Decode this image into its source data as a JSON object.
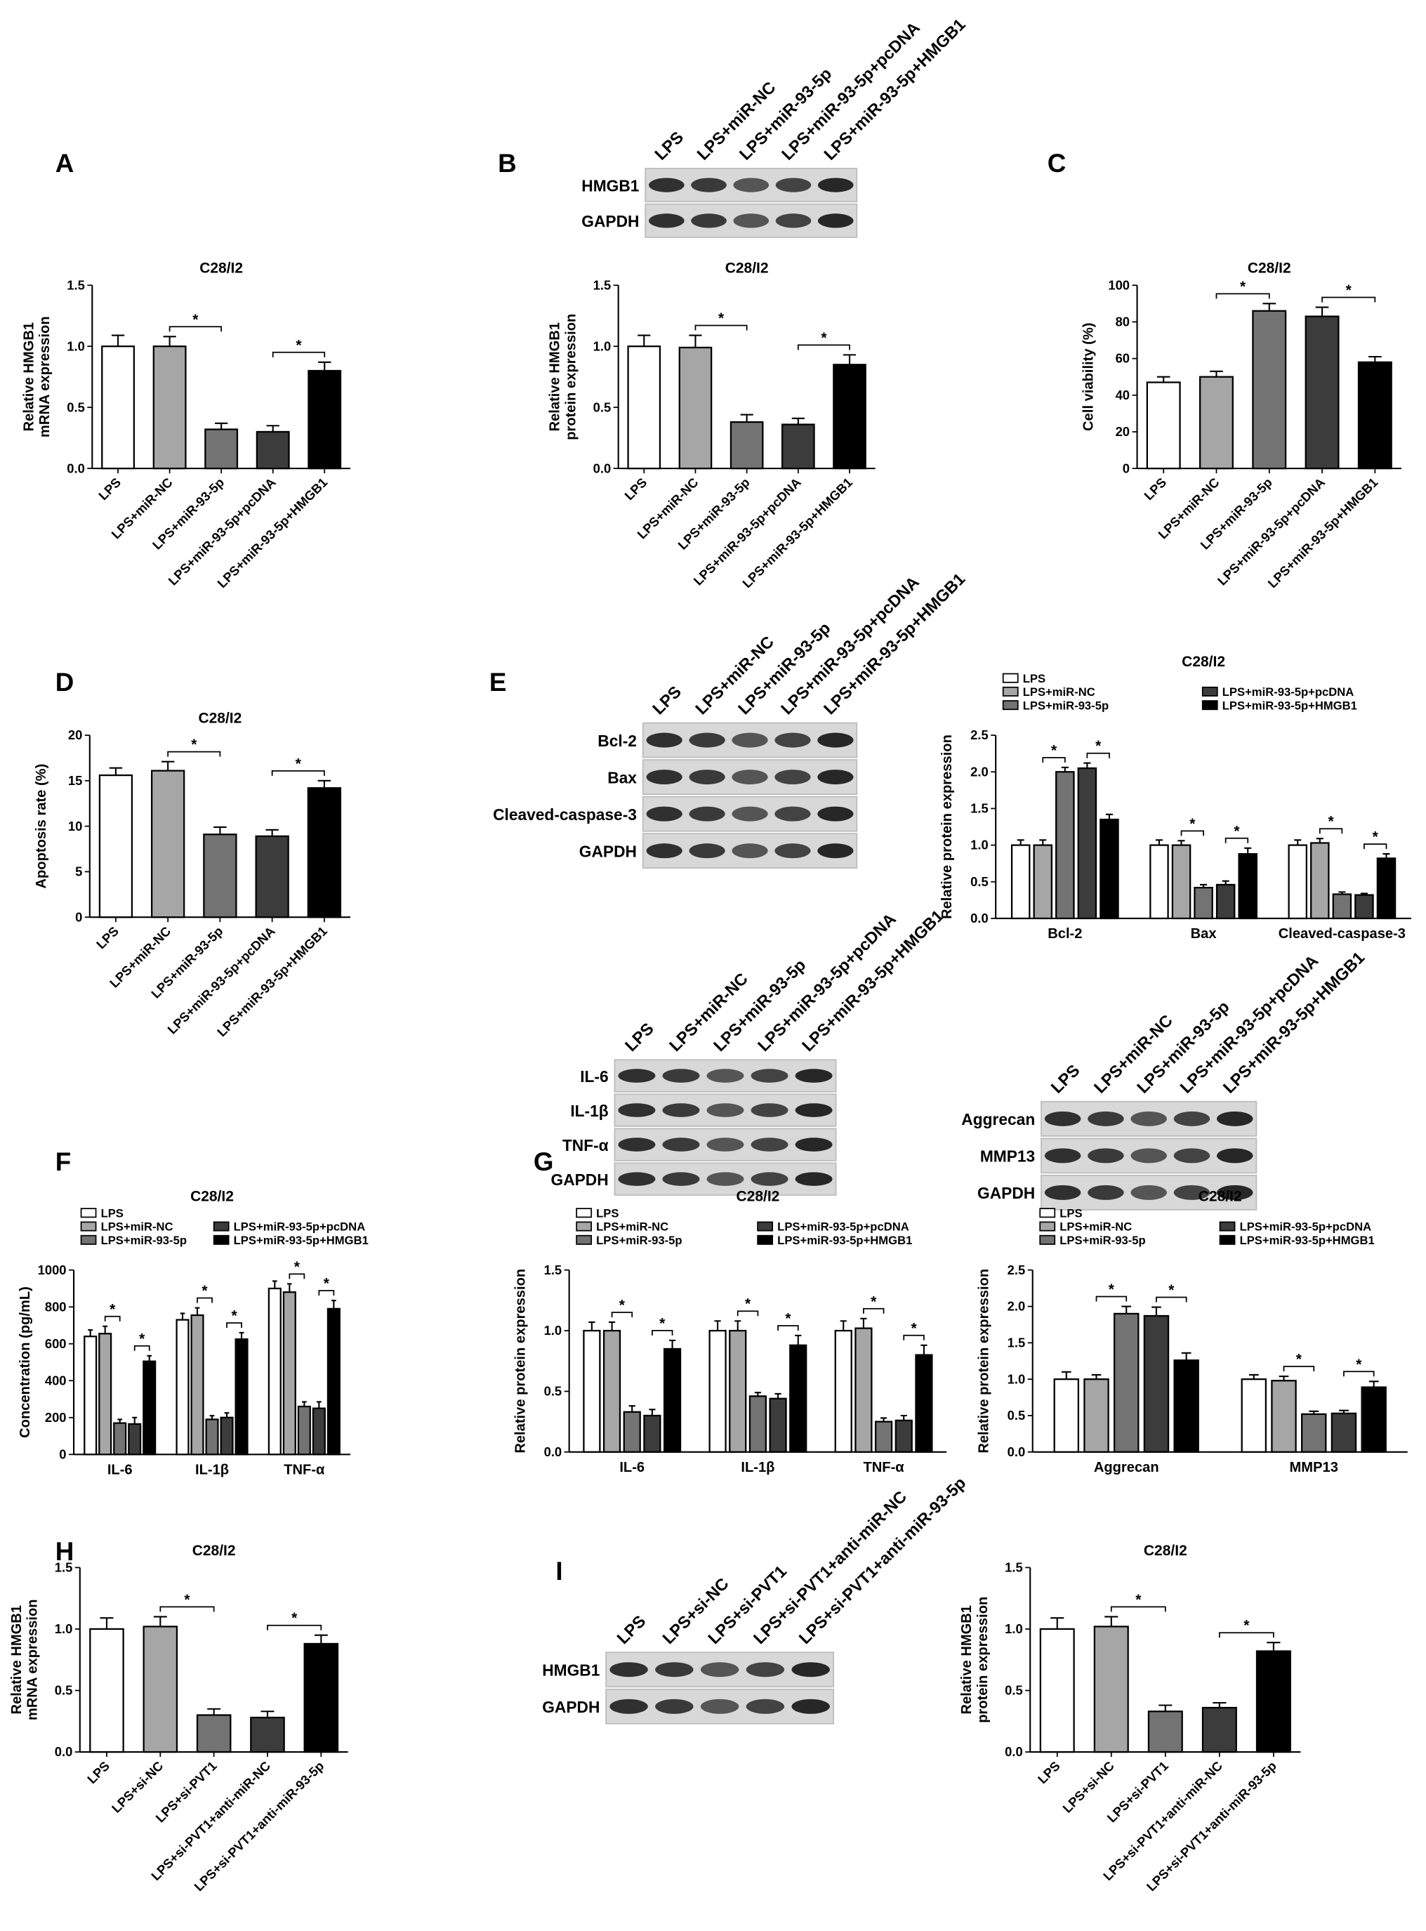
{
  "panels": [
    "A",
    "B",
    "C",
    "D",
    "E",
    "F",
    "G",
    "H",
    "I"
  ],
  "blots": [
    {
      "lanes": [
        "LPS",
        "LPS+miR-NC",
        "LPS+miR-93-5p",
        "LPS+miR-93-5p+pcDNA",
        "LPS+miR-93-5p+HMGB1"
      ],
      "rows": [
        "HMGB1",
        "GAPDH"
      ]
    },
    {
      "lanes": [
        "LPS",
        "LPS+miR-NC",
        "LPS+miR-93-5p",
        "LPS+miR-93-5p+pcDNA",
        "LPS+miR-93-5p+HMGB1"
      ],
      "rows": [
        "Bcl-2",
        "Bax",
        "Cleaved-caspase-3",
        "GAPDH"
      ]
    },
    {
      "lanes": [
        "LPS",
        "LPS+miR-NC",
        "LPS+miR-93-5p",
        "LPS+miR-93-5p+pcDNA",
        "LPS+miR-93-5p+HMGB1"
      ],
      "rows": [
        "IL-6",
        "IL-1β",
        "TNF-α",
        "GAPDH"
      ]
    },
    {
      "lanes": [
        "LPS",
        "LPS+miR-NC",
        "LPS+miR-93-5p",
        "LPS+miR-93-5p+pcDNA",
        "LPS+miR-93-5p+HMGB1"
      ],
      "rows": [
        "Aggrecan",
        "MMP13",
        "GAPDH"
      ]
    },
    {
      "lanes": [
        "LPS",
        "LPS+si-NC",
        "LPS+si-PVT1",
        "LPS+si-PVT1+anti-miR-NC",
        "LPS+si-PVT1+anti-miR-93-5p"
      ],
      "rows": [
        "HMGB1",
        "GAPDH"
      ]
    }
  ],
  "chart_data": [
    {
      "type": "bar",
      "title": "C28/I2",
      "ylabel": [
        "Relative HMGB1",
        "mRNA expression"
      ],
      "categories": [
        "LPS",
        "LPS+miR-NC",
        "LPS+miR-93-5p",
        "LPS+miR-93-5p+pcDNA",
        "LPS+miR-93-5p+HMGB1"
      ],
      "values": [
        1.0,
        1.0,
        0.32,
        0.3,
        0.8
      ],
      "errors": [
        0.09,
        0.08,
        0.05,
        0.05,
        0.07
      ],
      "colors": [
        "#ffffff",
        "#a6a6a6",
        "#737373",
        "#3c3c3c",
        "#000000"
      ],
      "ylim": [
        0,
        1.5
      ],
      "yticks": [
        {
          "value": 0,
          "label": "0.0"
        },
        0.5,
        {
          "value": 1,
          "label": "1.0"
        },
        1.5
      ],
      "comparisons": [
        {
          "pair": [
            1,
            2
          ],
          "text": "*"
        },
        {
          "pair": [
            3,
            4
          ],
          "text": "*"
        }
      ]
    },
    {
      "type": "bar",
      "title": "C28/I2",
      "ylabel": [
        "Relative HMGB1",
        "protein expression"
      ],
      "categories": [
        "LPS",
        "LPS+miR-NC",
        "LPS+miR-93-5p",
        "LPS+miR-93-5p+pcDNA",
        "LPS+miR-93-5p+HMGB1"
      ],
      "values": [
        1.0,
        0.99,
        0.38,
        0.36,
        0.85
      ],
      "errors": [
        0.09,
        0.1,
        0.06,
        0.05,
        0.08
      ],
      "colors": [
        "#ffffff",
        "#a6a6a6",
        "#737373",
        "#3c3c3c",
        "#000000"
      ],
      "ylim": [
        0,
        1.5
      ],
      "yticks": [
        {
          "value": 0,
          "label": "0.0"
        },
        0.5,
        {
          "value": 1,
          "label": "1.0"
        },
        1.5
      ],
      "comparisons": [
        {
          "pair": [
            1,
            2
          ],
          "text": "*"
        },
        {
          "pair": [
            3,
            4
          ],
          "text": "*"
        }
      ]
    },
    {
      "type": "bar",
      "title": "C28/I2",
      "ylabel": [
        "Cell viability (%)"
      ],
      "categories": [
        "LPS",
        "LPS+miR-NC",
        "LPS+miR-93-5p",
        "LPS+miR-93-5p+pcDNA",
        "LPS+miR-93-5p+HMGB1"
      ],
      "values": [
        47,
        50,
        86,
        83,
        58
      ],
      "errors": [
        3,
        3,
        4,
        5,
        3
      ],
      "colors": [
        "#ffffff",
        "#a6a6a6",
        "#737373",
        "#3c3c3c",
        "#000000"
      ],
      "ylim": [
        0,
        100
      ],
      "yticks": [
        0,
        20,
        40,
        60,
        80,
        100
      ],
      "comparisons": [
        {
          "pair": [
            1,
            2
          ],
          "text": "*"
        },
        {
          "pair": [
            3,
            4
          ],
          "text": "*"
        }
      ]
    },
    {
      "type": "bar",
      "title": "C28/I2",
      "ylabel": [
        "Apoptosis rate (%)"
      ],
      "categories": [
        "LPS",
        "LPS+miR-NC",
        "LPS+miR-93-5p",
        "LPS+miR-93-5p+pcDNA",
        "LPS+miR-93-5p+HMGB1"
      ],
      "values": [
        15.6,
        16.1,
        9.1,
        8.9,
        14.2
      ],
      "errors": [
        0.8,
        1.0,
        0.8,
        0.7,
        0.8
      ],
      "colors": [
        "#ffffff",
        "#a6a6a6",
        "#737373",
        "#3c3c3c",
        "#000000"
      ],
      "ylim": [
        0,
        20
      ],
      "yticks": [
        0,
        5,
        10,
        15,
        20
      ],
      "comparisons": [
        {
          "pair": [
            1,
            2
          ],
          "text": "*"
        },
        {
          "pair": [
            3,
            4
          ],
          "text": "*"
        }
      ]
    },
    {
      "type": "grouped_bar",
      "title": "C28/I2",
      "ylabel": [
        "Relative protein expression"
      ],
      "categories": [
        "Bcl-2",
        "Bax",
        "Cleaved-caspase-3"
      ],
      "legend": "top",
      "ylim": [
        0,
        2.5
      ],
      "yticks": [
        {
          "value": 0,
          "label": "0.0"
        },
        0.5,
        {
          "value": 1,
          "label": "1.0"
        },
        1.5,
        {
          "value": 2,
          "label": "2.0"
        },
        2.5
      ],
      "series": [
        {
          "name": "LPS",
          "color": "#ffffff",
          "values": [
            1.0,
            1.0,
            1.0
          ],
          "errors": [
            0.07,
            0.07,
            0.07
          ]
        },
        {
          "name": "LPS+miR-NC",
          "color": "#a6a6a6",
          "values": [
            1.0,
            1.0,
            1.03
          ],
          "errors": [
            0.07,
            0.06,
            0.06
          ]
        },
        {
          "name": "LPS+miR-93-5p",
          "color": "#737373",
          "values": [
            2.0,
            0.42,
            0.33
          ],
          "errors": [
            0.06,
            0.04,
            0.03
          ]
        },
        {
          "name": "LPS+miR-93-5p+pcDNA",
          "color": "#3c3c3c",
          "values": [
            2.05,
            0.46,
            0.32
          ],
          "errors": [
            0.07,
            0.05,
            0.02
          ]
        },
        {
          "name": "LPS+miR-93-5p+HMGB1",
          "color": "#000000",
          "values": [
            1.35,
            0.88,
            0.82
          ],
          "errors": [
            0.07,
            0.08,
            0.06
          ]
        }
      ],
      "comparisons": [
        {
          "group": 0,
          "pair": [
            1,
            2
          ],
          "text": "*"
        },
        {
          "group": 0,
          "pair": [
            3,
            4
          ],
          "text": "*"
        },
        {
          "group": 1,
          "pair": [
            1,
            2
          ],
          "text": "*"
        },
        {
          "group": 1,
          "pair": [
            3,
            4
          ],
          "text": "*"
        },
        {
          "group": 2,
          "pair": [
            1,
            2
          ],
          "text": "*"
        },
        {
          "group": 2,
          "pair": [
            3,
            4
          ],
          "text": "*"
        }
      ]
    },
    {
      "type": "grouped_bar",
      "title": "C28/I2",
      "ylabel": [
        "Concentration (pg/mL)"
      ],
      "categories": [
        "IL-6",
        "IL-1β",
        "TNF-α"
      ],
      "legend": "top",
      "ylim": [
        0,
        1000
      ],
      "yticks": [
        0,
        200,
        400,
        600,
        800,
        1000
      ],
      "series": [
        {
          "name": "LPS",
          "color": "#ffffff",
          "values": [
            640,
            730,
            900
          ],
          "errors": [
            35,
            35,
            40
          ]
        },
        {
          "name": "LPS+miR-NC",
          "color": "#a6a6a6",
          "values": [
            655,
            755,
            880
          ],
          "errors": [
            40,
            40,
            45
          ]
        },
        {
          "name": "LPS+miR-93-5p",
          "color": "#737373",
          "values": [
            170,
            190,
            260
          ],
          "errors": [
            20,
            20,
            25
          ]
        },
        {
          "name": "LPS+miR-93-5p+pcDNA",
          "color": "#3c3c3c",
          "values": [
            165,
            200,
            250
          ],
          "errors": [
            35,
            25,
            35
          ]
        },
        {
          "name": "LPS+miR-93-5p+HMGB1",
          "color": "#000000",
          "values": [
            505,
            625,
            790
          ],
          "errors": [
            30,
            35,
            45
          ]
        }
      ],
      "comparisons": [
        {
          "group": 0,
          "pair": [
            1,
            2
          ],
          "text": "*"
        },
        {
          "group": 0,
          "pair": [
            3,
            4
          ],
          "text": "*"
        },
        {
          "group": 1,
          "pair": [
            1,
            2
          ],
          "text": "*"
        },
        {
          "group": 1,
          "pair": [
            3,
            4
          ],
          "text": "*"
        },
        {
          "group": 2,
          "pair": [
            1,
            2
          ],
          "text": "*"
        },
        {
          "group": 2,
          "pair": [
            3,
            4
          ],
          "text": "*"
        }
      ]
    },
    {
      "type": "grouped_bar",
      "title": "C28/I2",
      "ylabel": [
        "Relative protein expression"
      ],
      "categories": [
        "IL-6",
        "IL-1β",
        "TNF-α"
      ],
      "legend": "top",
      "ylim": [
        0,
        1.5
      ],
      "yticks": [
        {
          "value": 0,
          "label": "0.0"
        },
        0.5,
        {
          "value": 1,
          "label": "1.0"
        },
        1.5
      ],
      "series": [
        {
          "name": "LPS",
          "color": "#ffffff",
          "values": [
            1.0,
            1.0,
            1.0
          ],
          "errors": [
            0.07,
            0.08,
            0.08
          ]
        },
        {
          "name": "LPS+miR-NC",
          "color": "#a6a6a6",
          "values": [
            1.0,
            1.0,
            1.02
          ],
          "errors": [
            0.07,
            0.08,
            0.08
          ]
        },
        {
          "name": "LPS+miR-93-5p",
          "color": "#737373",
          "values": [
            0.33,
            0.46,
            0.25
          ],
          "errors": [
            0.05,
            0.03,
            0.03
          ]
        },
        {
          "name": "LPS+miR-93-5p+pcDNA",
          "color": "#3c3c3c",
          "values": [
            0.3,
            0.44,
            0.26
          ],
          "errors": [
            0.05,
            0.04,
            0.04
          ]
        },
        {
          "name": "LPS+miR-93-5p+HMGB1",
          "color": "#000000",
          "values": [
            0.85,
            0.88,
            0.8
          ],
          "errors": [
            0.07,
            0.08,
            0.08
          ]
        }
      ],
      "comparisons": [
        {
          "group": 0,
          "pair": [
            1,
            2
          ],
          "text": "*"
        },
        {
          "group": 0,
          "pair": [
            3,
            4
          ],
          "text": "*"
        },
        {
          "group": 1,
          "pair": [
            1,
            2
          ],
          "text": "*"
        },
        {
          "group": 1,
          "pair": [
            3,
            4
          ],
          "text": "*"
        },
        {
          "group": 2,
          "pair": [
            1,
            2
          ],
          "text": "*"
        },
        {
          "group": 2,
          "pair": [
            3,
            4
          ],
          "text": "*"
        }
      ]
    },
    {
      "type": "grouped_bar",
      "title": "C28/I2",
      "ylabel": [
        "Relative protein expression"
      ],
      "categories": [
        "Aggrecan",
        "MMP13"
      ],
      "legend": "top",
      "ylim": [
        0,
        2.5
      ],
      "yticks": [
        {
          "value": 0,
          "label": "0.0"
        },
        0.5,
        {
          "value": 1,
          "label": "1.0"
        },
        1.5,
        {
          "value": 2,
          "label": "2.0"
        },
        2.5
      ],
      "series": [
        {
          "name": "LPS",
          "color": "#ffffff",
          "values": [
            1.0,
            1.0
          ],
          "errors": [
            0.1,
            0.06
          ]
        },
        {
          "name": "LPS+miR-NC",
          "color": "#a6a6a6",
          "values": [
            1.0,
            0.98
          ],
          "errors": [
            0.06,
            0.06
          ]
        },
        {
          "name": "LPS+miR-93-5p",
          "color": "#737373",
          "values": [
            1.9,
            0.52
          ],
          "errors": [
            0.1,
            0.04
          ]
        },
        {
          "name": "LPS+miR-93-5p+pcDNA",
          "color": "#3c3c3c",
          "values": [
            1.87,
            0.53
          ],
          "errors": [
            0.12,
            0.04
          ]
        },
        {
          "name": "LPS+miR-93-5p+HMGB1",
          "color": "#000000",
          "values": [
            1.26,
            0.89
          ],
          "errors": [
            0.1,
            0.08
          ]
        }
      ],
      "comparisons": [
        {
          "group": 0,
          "pair": [
            1,
            2
          ],
          "text": "*"
        },
        {
          "group": 0,
          "pair": [
            3,
            4
          ],
          "text": "*"
        },
        {
          "group": 1,
          "pair": [
            1,
            2
          ],
          "text": "*"
        },
        {
          "group": 1,
          "pair": [
            3,
            4
          ],
          "text": "*"
        }
      ]
    },
    {
      "type": "bar",
      "title": "C28/I2",
      "ylabel": [
        "Relative HMGB1",
        "mRNA expression"
      ],
      "categories": [
        "LPS",
        "LPS+si-NC",
        "LPS+si-PVT1",
        "LPS+si-PVT1+anti-miR-NC",
        "LPS+si-PVT1+anti-miR-93-5p"
      ],
      "values": [
        1.0,
        1.02,
        0.3,
        0.28,
        0.88
      ],
      "errors": [
        0.09,
        0.08,
        0.05,
        0.05,
        0.07
      ],
      "colors": [
        "#ffffff",
        "#a6a6a6",
        "#737373",
        "#3c3c3c",
        "#000000"
      ],
      "ylim": [
        0,
        1.5
      ],
      "yticks": [
        {
          "value": 0,
          "label": "0.0"
        },
        0.5,
        {
          "value": 1,
          "label": "1.0"
        },
        1.5
      ],
      "comparisons": [
        {
          "pair": [
            1,
            2
          ],
          "text": "*"
        },
        {
          "pair": [
            3,
            4
          ],
          "text": "*"
        }
      ]
    },
    {
      "type": "bar",
      "title": "C28/I2",
      "ylabel": [
        "Relative HMGB1",
        "protein expression"
      ],
      "categories": [
        "LPS",
        "LPS+si-NC",
        "LPS+si-PVT1",
        "LPS+si-PVT1+anti-miR-NC",
        "LPS+si-PVT1+anti-miR-93-5p"
      ],
      "values": [
        1.0,
        1.02,
        0.33,
        0.36,
        0.82
      ],
      "errors": [
        0.09,
        0.08,
        0.05,
        0.04,
        0.07
      ],
      "colors": [
        "#ffffff",
        "#a6a6a6",
        "#737373",
        "#3c3c3c",
        "#000000"
      ],
      "ylim": [
        0,
        1.5
      ],
      "yticks": [
        {
          "value": 0,
          "label": "0.0"
        },
        0.5,
        {
          "value": 1,
          "label": "1.0"
        },
        1.5
      ],
      "comparisons": [
        {
          "pair": [
            1,
            2
          ],
          "text": "*"
        },
        {
          "pair": [
            3,
            4
          ],
          "text": "*"
        }
      ]
    }
  ]
}
